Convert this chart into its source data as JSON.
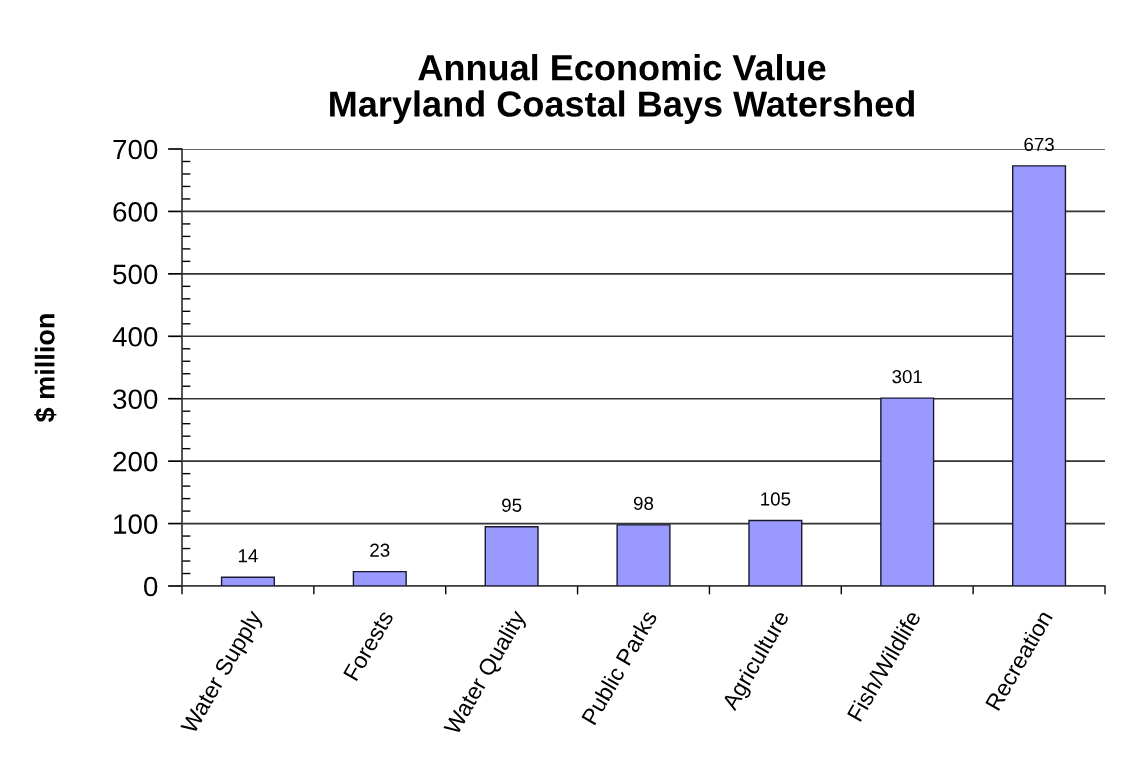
{
  "chart_data": {
    "type": "bar",
    "title": "Annual Economic Value\nMaryland Coastal Bays Watershed",
    "ylabel": "$ million",
    "categories": [
      "Water Supply",
      "Forests",
      "Water Quality",
      "Public Parks",
      "Agriculture",
      "Fish/Wildlife",
      "Recreation"
    ],
    "values": [
      14,
      23,
      95,
      98,
      105,
      301,
      673
    ],
    "color": "#9999ff",
    "ylim": [
      0,
      700
    ],
    "yticks": [
      0,
      {
        "value": 20,
        "label": null
      },
      {
        "value": 40,
        "label": null
      },
      {
        "value": 60,
        "label": null
      },
      {
        "value": 80,
        "label": null
      },
      100,
      {
        "value": 120,
        "label": null
      },
      {
        "value": 140,
        "label": null
      },
      {
        "value": 160,
        "label": null
      },
      {
        "value": 180,
        "label": null
      },
      200,
      {
        "value": 220,
        "label": null
      },
      {
        "value": 240,
        "label": null
      },
      {
        "value": 260,
        "label": null
      },
      {
        "value": 280,
        "label": null
      },
      300,
      {
        "value": 320,
        "label": null
      },
      {
        "value": 340,
        "label": null
      },
      {
        "value": 360,
        "label": null
      },
      {
        "value": 380,
        "label": null
      },
      400,
      {
        "value": 420,
        "label": null
      },
      {
        "value": 440,
        "label": null
      },
      {
        "value": 460,
        "label": null
      },
      {
        "value": 480,
        "label": null
      },
      500,
      {
        "value": 520,
        "label": null
      },
      {
        "value": 540,
        "label": null
      },
      {
        "value": 560,
        "label": null
      },
      {
        "value": 580,
        "label": null
      },
      600,
      {
        "value": 620,
        "label": null
      },
      {
        "value": 640,
        "label": null
      },
      {
        "value": 660,
        "label": null
      },
      {
        "value": 680,
        "label": null
      },
      700
    ],
    "grid": "y",
    "data_labels": true
  }
}
